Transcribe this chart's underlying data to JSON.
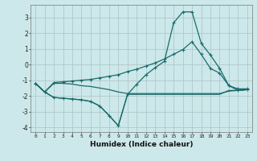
{
  "xlabel": "Humidex (Indice chaleur)",
  "bg_color": "#cce8ea",
  "grid_color": "#b0c8ca",
  "line_color": "#1a6b6b",
  "xlim": [
    -0.5,
    23.5
  ],
  "ylim": [
    -4.3,
    3.8
  ],
  "xticks": [
    0,
    1,
    2,
    3,
    4,
    5,
    6,
    7,
    8,
    9,
    10,
    11,
    12,
    13,
    14,
    15,
    16,
    17,
    18,
    19,
    20,
    21,
    22,
    23
  ],
  "yticks": [
    -4,
    -3,
    -2,
    -1,
    0,
    1,
    2,
    3
  ],
  "line1_x": [
    0,
    1,
    2,
    3,
    4,
    5,
    6,
    7,
    8,
    9,
    10,
    11,
    12,
    13,
    14,
    15,
    16,
    17,
    18,
    19,
    20,
    21,
    22,
    23
  ],
  "line1_y": [
    -1.2,
    -1.75,
    -1.2,
    -1.2,
    -1.25,
    -1.35,
    -1.4,
    -1.5,
    -1.6,
    -1.75,
    -1.85,
    -1.85,
    -1.85,
    -1.85,
    -1.85,
    -1.85,
    -1.85,
    -1.85,
    -1.85,
    -1.85,
    -1.85,
    -1.7,
    -1.65,
    -1.6
  ],
  "line2_x": [
    0,
    1,
    2,
    3,
    4,
    5,
    6,
    7,
    8,
    9,
    10,
    11,
    12,
    13,
    14,
    15,
    16,
    17,
    18,
    19,
    20,
    21,
    22,
    23
  ],
  "line2_y": [
    -1.2,
    -1.75,
    -1.15,
    -1.1,
    -1.05,
    -1.0,
    -0.95,
    -0.85,
    -0.75,
    -0.65,
    -0.45,
    -0.3,
    -0.1,
    0.1,
    0.35,
    0.65,
    0.95,
    1.45,
    0.65,
    -0.25,
    -0.55,
    -1.35,
    -1.55,
    -1.55
  ],
  "line3_x": [
    0,
    1,
    2,
    3,
    4,
    5,
    6,
    7,
    8,
    9,
    10,
    11,
    12,
    13,
    14,
    15,
    16,
    17,
    18,
    19,
    20,
    21,
    22,
    23
  ],
  "line3_y": [
    -1.2,
    -1.75,
    -2.1,
    -2.15,
    -2.2,
    -2.25,
    -2.35,
    -2.65,
    -3.25,
    -3.9,
    -1.9,
    -1.9,
    -1.9,
    -1.9,
    -1.9,
    -1.9,
    -1.9,
    -1.9,
    -1.9,
    -1.9,
    -1.9,
    -1.65,
    -1.65,
    -1.6
  ],
  "line4_x": [
    0,
    1,
    2,
    3,
    4,
    5,
    6,
    7,
    8,
    9,
    10,
    11,
    12,
    13,
    14,
    15,
    16,
    17,
    18,
    19,
    20,
    21,
    22,
    23
  ],
  "line4_y": [
    -1.2,
    -1.75,
    -2.1,
    -2.15,
    -2.2,
    -2.25,
    -2.35,
    -2.65,
    -3.25,
    -3.9,
    -1.9,
    -1.25,
    -0.65,
    -0.2,
    0.2,
    2.65,
    3.35,
    3.35,
    1.35,
    0.6,
    -0.25,
    -1.35,
    -1.65,
    -1.6
  ]
}
